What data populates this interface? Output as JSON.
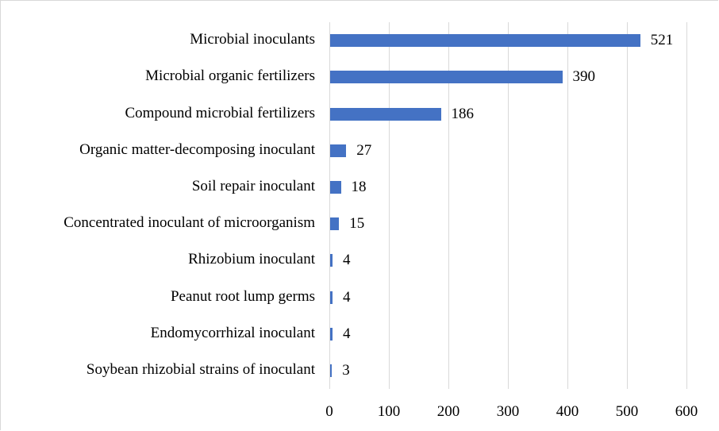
{
  "chart_data": {
    "type": "bar",
    "orientation": "horizontal",
    "title": "",
    "xlabel": "",
    "ylabel": "",
    "xlim": [
      0,
      600
    ],
    "x_ticks": [
      "0",
      "100",
      "200",
      "300",
      "400",
      "500",
      "600"
    ],
    "grid": true,
    "legend": null,
    "bar_color": "#4472c4",
    "categories": [
      "Microbial inoculants",
      "Microbial organic fertilizers",
      "Compound microbial fertilizers",
      "Organic matter-decomposing inoculant",
      "Soil repair inoculant",
      "Concentrated inoculant of microorganism",
      "Rhizobium inoculant",
      "Peanut root lump germs",
      "Endomycorrhizal inoculant",
      "Soybean rhizobial strains of inoculant"
    ],
    "values": [
      521,
      390,
      186,
      27,
      18,
      15,
      4,
      4,
      4,
      3
    ],
    "data_labels": [
      "521",
      "390",
      "186",
      "27",
      "18",
      "15",
      "4",
      "4",
      "4",
      "3"
    ]
  }
}
